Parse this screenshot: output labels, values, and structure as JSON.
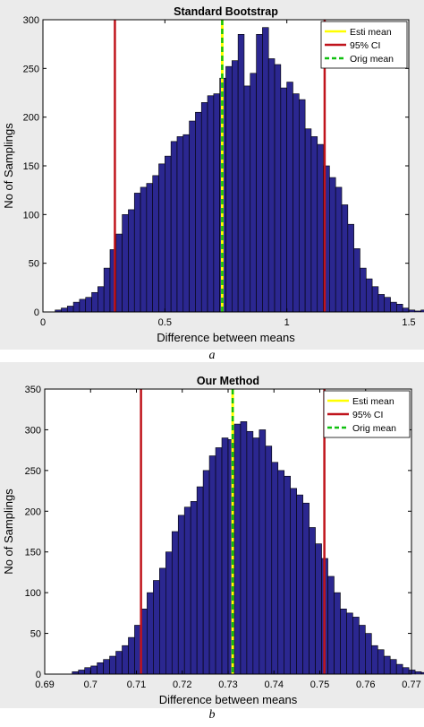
{
  "chart_data": [
    {
      "type": "histogram",
      "title": "Standard Bootstrap",
      "xlabel": "Difference between means",
      "ylabel": "No of Samplings",
      "xlim": [
        0,
        1.5
      ],
      "ylim": [
        0,
        300
      ],
      "xticks": [
        "0",
        "0.5",
        "1",
        "1.5"
      ],
      "yticks": [
        "0",
        "50",
        "100",
        "150",
        "200",
        "250",
        "300"
      ],
      "bin_start": 0.05,
      "bin_width": 0.025,
      "counts": [
        2,
        4,
        6,
        10,
        13,
        15,
        20,
        26,
        45,
        64,
        80,
        100,
        105,
        122,
        128,
        132,
        140,
        152,
        160,
        175,
        180,
        182,
        196,
        205,
        215,
        222,
        224,
        240,
        252,
        258,
        285,
        232,
        245,
        285,
        292,
        260,
        254,
        230,
        236,
        224,
        218,
        188,
        180,
        172,
        150,
        138,
        128,
        110,
        90,
        65,
        45,
        34,
        26,
        18,
        15,
        10,
        8,
        4,
        2,
        1,
        2,
        2,
        3,
        3,
        2
      ],
      "lines": {
        "esti_mean": 0.735,
        "ci_low": 0.295,
        "ci_high": 1.155,
        "orig_mean": 0.735
      },
      "legend": {
        "placement": "top-right",
        "entries": [
          "Esti mean",
          "95% CI",
          "Orig mean"
        ]
      },
      "colors": {
        "bar": "#2b2790",
        "bar_edge": "#000000",
        "esti": "#ffff00",
        "ci": "#c0141c",
        "orig": "#10c010",
        "plot_bg": "#ffffff",
        "figure_bg": "#ebebeb"
      }
    },
    {
      "type": "histogram",
      "title": "Our Method",
      "xlabel": "Difference between means",
      "ylabel": "No of Samplings",
      "xlim": [
        0.69,
        0.77
      ],
      "ylim": [
        0,
        350
      ],
      "xticks": [
        "0.69",
        "0.7",
        "0.71",
        "0.72",
        "0.73",
        "0.74",
        "0.75",
        "0.76",
        "0.77"
      ],
      "yticks": [
        "0",
        "50",
        "100",
        "150",
        "200",
        "250",
        "300",
        "350"
      ],
      "bin_start": 0.696,
      "bin_width": 0.00136,
      "counts": [
        3,
        5,
        8,
        10,
        14,
        18,
        22,
        28,
        35,
        45,
        60,
        80,
        100,
        115,
        130,
        150,
        175,
        195,
        205,
        212,
        230,
        250,
        268,
        278,
        290,
        288,
        307,
        310,
        298,
        290,
        300,
        280,
        260,
        250,
        243,
        228,
        220,
        210,
        180,
        160,
        142,
        120,
        100,
        80,
        75,
        70,
        60,
        50,
        35,
        30,
        22,
        18,
        12,
        8,
        5,
        3,
        2
      ],
      "lines": {
        "esti_mean": 0.731,
        "ci_low": 0.711,
        "ci_high": 0.751,
        "orig_mean": 0.731
      },
      "legend": {
        "placement": "top-right",
        "entries": [
          "Esti mean",
          "95% CI",
          "Orig mean"
        ]
      },
      "colors": {
        "bar": "#2b2790",
        "bar_edge": "#000000",
        "esti": "#ffff00",
        "ci": "#c0141c",
        "orig": "#10c010",
        "plot_bg": "#ffffff",
        "figure_bg": "#ebebeb"
      }
    }
  ],
  "captions": [
    "a",
    "b"
  ]
}
